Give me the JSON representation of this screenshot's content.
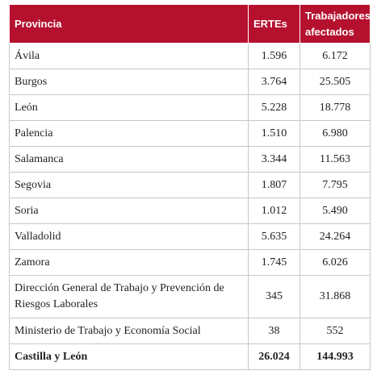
{
  "table": {
    "headers": [
      "Provincia",
      "ERTEs",
      "Trabajadores afectados"
    ],
    "rows": [
      [
        "Ávila",
        "1.596",
        "6.172"
      ],
      [
        "Burgos",
        "3.764",
        "25.505"
      ],
      [
        "León",
        "5.228",
        "18.778"
      ],
      [
        "Palencia",
        "1.510",
        "6.980"
      ],
      [
        "Salamanca",
        "3.344",
        "11.563"
      ],
      [
        "Segovia",
        "1.807",
        "7.795"
      ],
      [
        "Soria",
        "1.012",
        "5.490"
      ],
      [
        "Valladolid",
        "5.635",
        "24.264"
      ],
      [
        "Zamora",
        "1.745",
        "6.026"
      ],
      [
        "Dirección General de Trabajo y Prevención de Riesgos Laborales",
        "345",
        "31.868"
      ],
      [
        "Ministerio de Trabajo y Economía Social",
        "38",
        "552"
      ]
    ],
    "total": [
      "Castilla y León",
      "26.024",
      "144.993"
    ]
  }
}
